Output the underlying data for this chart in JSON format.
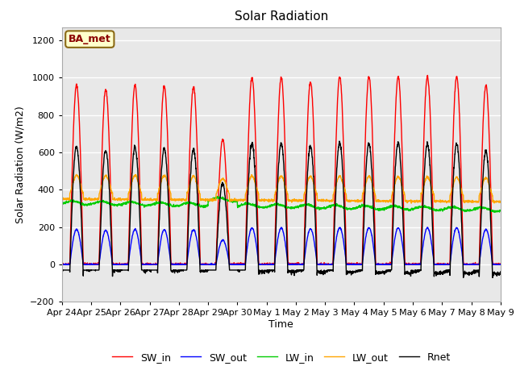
{
  "title": "Solar Radiation",
  "xlabel": "Time",
  "ylabel": "Solar Radiation (W/m2)",
  "ylim": [
    -200,
    1270
  ],
  "yticks": [
    -200,
    0,
    200,
    400,
    600,
    800,
    1000,
    1200
  ],
  "num_days": 15,
  "colors": {
    "SW_in": "#ff0000",
    "SW_out": "#0000ff",
    "LW_in": "#00cc00",
    "LW_out": "#ffa500",
    "Rnet": "#000000"
  },
  "label_box_text": "BA_met",
  "label_box_facecolor": "#ffffcc",
  "label_box_edgecolor": "#8b6914",
  "label_box_textcolor": "#8b0000",
  "plot_bg_color": "#e8e8e8",
  "sw_in_peaks": [
    960,
    935,
    960,
    955,
    950,
    670,
    1000,
    1000,
    975,
    1005,
    1005,
    1005,
    1005,
    1005,
    960
  ],
  "pts_per_day": 144,
  "day_rise": 0.27,
  "day_set": 0.73,
  "lw_in_base": 320,
  "lw_out_base": 380,
  "rnet_night_min": -100,
  "rnet_night_max": -30
}
